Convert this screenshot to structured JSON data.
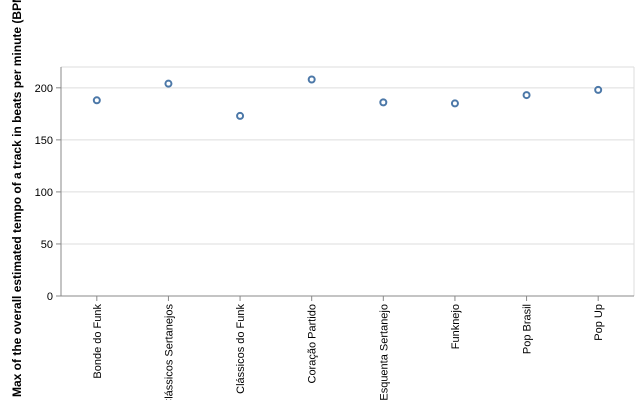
{
  "chart_data": {
    "type": "scatter",
    "categories": [
      "Bonde do Funk",
      "Clássicos Sertanejos",
      "Clássicos do Funk",
      "Coração Partido",
      "Esquenta Sertanejo",
      "Funknejo",
      "Pop Brasil",
      "Pop Up"
    ],
    "values": [
      188,
      204,
      173,
      208,
      186,
      185,
      193,
      198
    ],
    "ylabel": "Max of the overall estimated tempo of a track in beats per minute (BPM)",
    "xlabel": "",
    "ylim": [
      0,
      220
    ],
    "yticks": [
      0,
      50,
      100,
      150,
      200
    ],
    "grid": true,
    "marker": "open-circle",
    "color": "#4c78a8"
  }
}
